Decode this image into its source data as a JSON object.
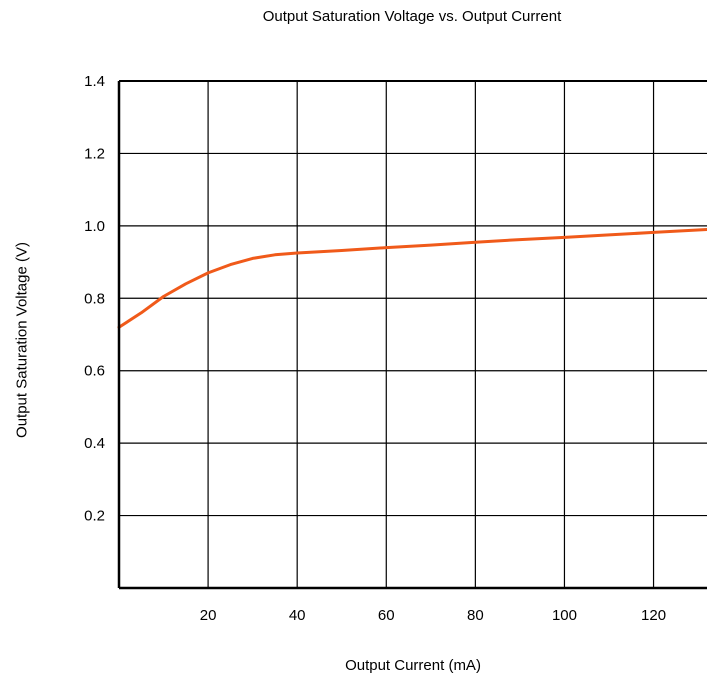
{
  "chart_data": {
    "type": "line",
    "title": "Output Saturation Voltage vs. Output Current",
    "xlabel": "Output Current (mA)",
    "ylabel": "Output Saturation Voltage (V)",
    "xlim": [
      0,
      132
    ],
    "ylim": [
      0,
      1.4
    ],
    "x_ticks": [
      "20",
      "40",
      "60",
      "80",
      "100",
      "120"
    ],
    "y_ticks": [
      "0.2",
      "0.4",
      "0.6",
      "0.8",
      "1.0",
      "1.2",
      "1.4"
    ],
    "grid": true,
    "line_color": "#f05a1a",
    "series": [
      {
        "x": [
          0,
          5,
          10,
          15,
          20,
          25,
          30,
          35,
          40,
          50,
          60,
          70,
          80,
          90,
          100,
          110,
          120,
          132
        ],
        "y": [
          0.72,
          0.76,
          0.805,
          0.84,
          0.87,
          0.893,
          0.91,
          0.92,
          0.925,
          0.932,
          0.94,
          0.947,
          0.955,
          0.962,
          0.968,
          0.975,
          0.982,
          0.99
        ]
      }
    ]
  }
}
